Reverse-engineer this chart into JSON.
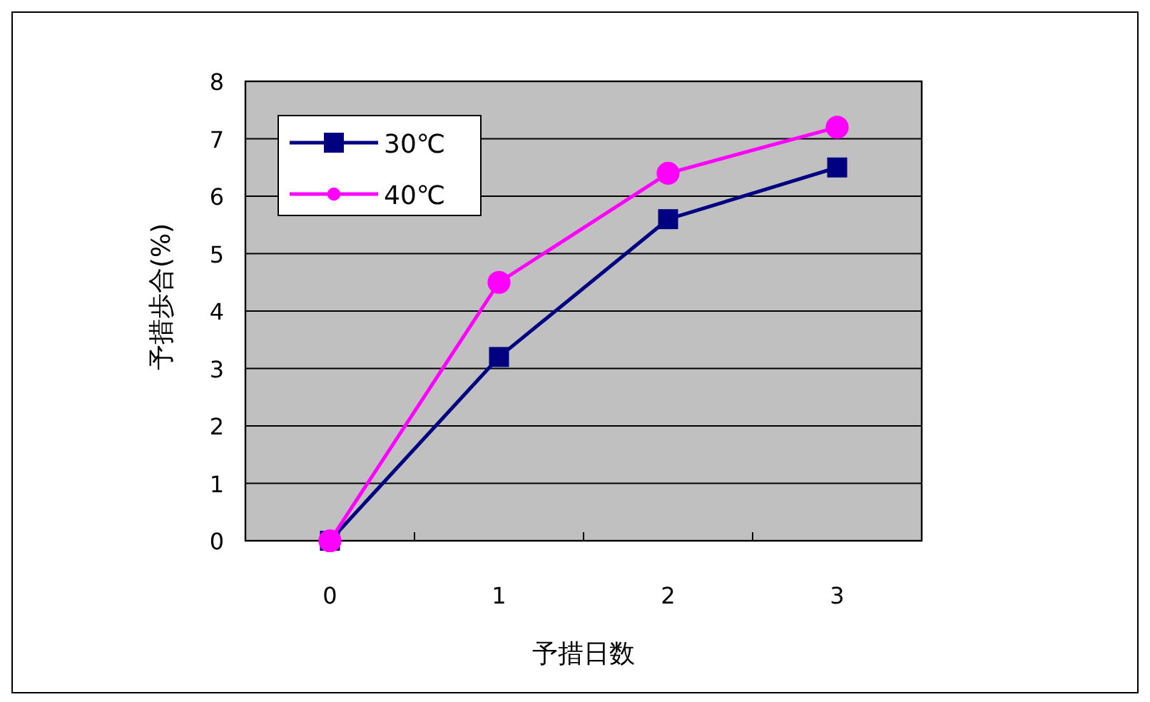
{
  "chart_data": {
    "type": "line",
    "xlabel": "予措日数",
    "ylabel": "予措歩合(%)",
    "categories": [
      "0",
      "1",
      "2",
      "3"
    ],
    "series": [
      {
        "name": "30℃",
        "color": "#000080",
        "marker": "square",
        "values": [
          0,
          3.2,
          5.6,
          6.5
        ]
      },
      {
        "name": "40℃",
        "color": "#ff00ff",
        "marker": "circle",
        "values": [
          0,
          4.5,
          6.4,
          7.2
        ]
      }
    ],
    "ylim": [
      0,
      8
    ],
    "yticks": [
      0,
      1,
      2,
      3,
      4,
      5,
      6,
      7,
      8
    ],
    "grid": "y",
    "legend": "top left"
  }
}
